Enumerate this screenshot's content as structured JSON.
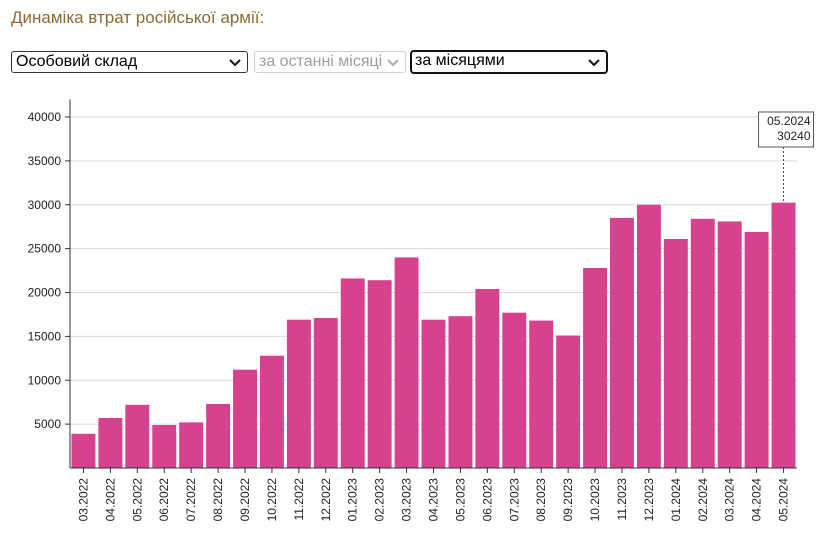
{
  "page_title": "Динаміка втрат російської армії:",
  "controls": {
    "category": "Особовий склад",
    "period": "за останні місяці",
    "grouping": "за місяцями"
  },
  "colors": {
    "bar": "#d6428d",
    "title": "#8a6d2e",
    "grid": "#d9d9d9",
    "axis": "#333333"
  },
  "tooltip": {
    "date": "05.2024",
    "value": "30240"
  },
  "chart_data": {
    "type": "bar",
    "title": "",
    "xlabel": "",
    "ylabel": "",
    "ylim": [
      0,
      42000
    ],
    "yticks": [
      5000,
      10000,
      15000,
      20000,
      25000,
      30000,
      35000,
      40000
    ],
    "grid": true,
    "categories": [
      "03.2022",
      "04.2022",
      "05.2022",
      "06.2022",
      "07.2022",
      "08.2022",
      "09.2022",
      "10.2022",
      "11.2022",
      "12.2022",
      "01.2023",
      "02.2023",
      "03.2023",
      "04.2023",
      "05.2023",
      "06.2023",
      "07.2023",
      "08.2023",
      "09.2023",
      "10.2023",
      "11.2023",
      "12.2023",
      "01.2024",
      "02.2024",
      "03.2024",
      "04.2024",
      "05.2024"
    ],
    "values": [
      3900,
      5700,
      7200,
      4900,
      5200,
      7300,
      11200,
      12800,
      16900,
      17100,
      21600,
      21400,
      24000,
      16900,
      17300,
      20400,
      17700,
      16800,
      15100,
      22800,
      28500,
      30000,
      26100,
      28400,
      28100,
      26900,
      30240
    ]
  }
}
